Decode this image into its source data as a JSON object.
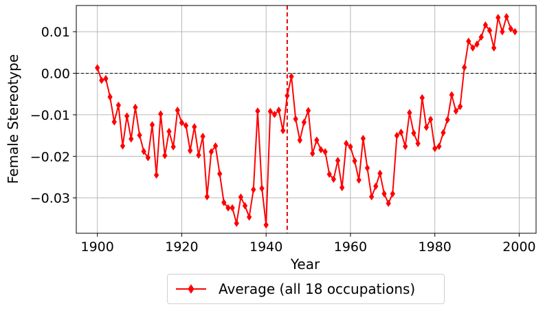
{
  "chart_data": {
    "type": "line",
    "title": "",
    "xlabel": "Year",
    "ylabel": "Female Stereotype",
    "xlim": [
      1895,
      2004
    ],
    "ylim": [
      -0.0385,
      0.0163
    ],
    "x_ticks": [
      1900,
      1920,
      1940,
      1960,
      1980,
      2000
    ],
    "x_tick_labels": [
      "1900",
      "1920",
      "1940",
      "1960",
      "1980",
      "2000"
    ],
    "y_ticks": [
      0.01,
      0.0,
      -0.01,
      -0.02,
      -0.03
    ],
    "y_tick_labels": [
      "0.01",
      "0.00",
      "−0.01",
      "−0.02",
      "−0.03"
    ],
    "grid": true,
    "legend_position": "below",
    "reference_lines": [
      {
        "orientation": "horizontal",
        "value": 0.0,
        "color": "#000000",
        "style": "dashed"
      },
      {
        "orientation": "vertical",
        "value": 1945,
        "color": "#e60000",
        "style": "dashed"
      }
    ],
    "series": [
      {
        "name": "Average (all 18 occupations)",
        "color": "#ff0000",
        "marker": "diamond",
        "x": [
          1900,
          1901,
          1902,
          1903,
          1904,
          1905,
          1906,
          1907,
          1908,
          1909,
          1910,
          1911,
          1912,
          1913,
          1914,
          1915,
          1916,
          1917,
          1918,
          1919,
          1920,
          1921,
          1922,
          1923,
          1924,
          1925,
          1926,
          1927,
          1928,
          1929,
          1930,
          1931,
          1932,
          1933,
          1934,
          1935,
          1936,
          1937,
          1938,
          1939,
          1940,
          1941,
          1942,
          1943,
          1944,
          1945,
          1946,
          1947,
          1948,
          1949,
          1950,
          1951,
          1952,
          1953,
          1954,
          1955,
          1956,
          1957,
          1958,
          1959,
          1960,
          1961,
          1962,
          1963,
          1964,
          1965,
          1966,
          1967,
          1968,
          1969,
          1970,
          1971,
          1972,
          1973,
          1974,
          1975,
          1976,
          1977,
          1978,
          1979,
          1980,
          1981,
          1982,
          1983,
          1984,
          1985,
          1986,
          1987,
          1988,
          1989,
          1990,
          1991,
          1992,
          1993,
          1994,
          1995,
          1996,
          1997,
          1998,
          1999
        ],
        "values": [
          0.0013,
          -0.0017,
          -0.0013,
          -0.0057,
          -0.0117,
          -0.0077,
          -0.0175,
          -0.0103,
          -0.0158,
          -0.0082,
          -0.0149,
          -0.0188,
          -0.0203,
          -0.0124,
          -0.0245,
          -0.0098,
          -0.0198,
          -0.014,
          -0.0177,
          -0.0089,
          -0.0119,
          -0.0126,
          -0.0186,
          -0.0129,
          -0.0197,
          -0.0152,
          -0.0297,
          -0.0189,
          -0.0175,
          -0.0242,
          -0.0311,
          -0.0324,
          -0.0324,
          -0.0361,
          -0.0298,
          -0.0319,
          -0.0346,
          -0.028,
          -0.0091,
          -0.0277,
          -0.0365,
          -0.0092,
          -0.0099,
          -0.0089,
          -0.0138,
          -0.0054,
          -0.0008,
          -0.011,
          -0.0161,
          -0.0118,
          -0.009,
          -0.0193,
          -0.0161,
          -0.0184,
          -0.0189,
          -0.0243,
          -0.0255,
          -0.021,
          -0.0275,
          -0.0169,
          -0.0177,
          -0.0211,
          -0.0257,
          -0.0157,
          -0.0228,
          -0.0297,
          -0.0272,
          -0.0241,
          -0.029,
          -0.0313,
          -0.029,
          -0.015,
          -0.0142,
          -0.0176,
          -0.0095,
          -0.0144,
          -0.0169,
          -0.0059,
          -0.013,
          -0.0111,
          -0.0181,
          -0.0176,
          -0.0143,
          -0.0112,
          -0.0052,
          -0.0091,
          -0.008,
          0.0014,
          0.0077,
          0.0061,
          0.007,
          0.0087,
          0.0116,
          0.0103,
          0.0061,
          0.0134,
          0.01,
          0.0136,
          0.0107,
          0.01
        ]
      }
    ]
  }
}
